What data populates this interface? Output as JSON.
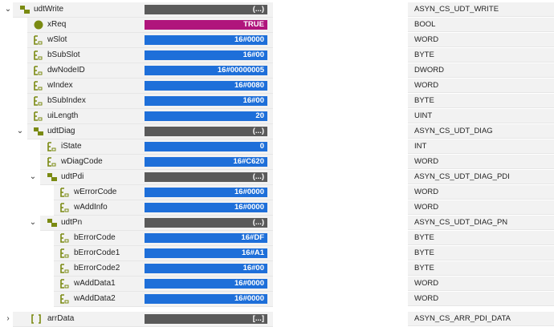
{
  "rows": [
    {
      "name": "udtWrite",
      "value": "(...)",
      "type": "ASYN_CS_UDT_WRITE",
      "icon": "struct-icon",
      "chevron": "expanded",
      "kind": "grey"
    },
    {
      "name": "xReq",
      "value": "TRUE",
      "type": "BOOL",
      "icon": "bool-icon",
      "chevron": "",
      "kind": "bool"
    },
    {
      "name": "wSlot",
      "value": "16#0000",
      "type": "WORD",
      "icon": "var-icon",
      "chevron": "",
      "kind": "blue"
    },
    {
      "name": "bSubSlot",
      "value": "16#00",
      "type": "BYTE",
      "icon": "var-icon",
      "chevron": "",
      "kind": "blue"
    },
    {
      "name": "dwNodeID",
      "value": "16#00000005",
      "type": "DWORD",
      "icon": "var-icon",
      "chevron": "",
      "kind": "blue"
    },
    {
      "name": "wIndex",
      "value": "16#0080",
      "type": "WORD",
      "icon": "var-icon",
      "chevron": "",
      "kind": "blue"
    },
    {
      "name": "bSubIndex",
      "value": "16#00",
      "type": "BYTE",
      "icon": "var-icon",
      "chevron": "",
      "kind": "blue"
    },
    {
      "name": "uiLength",
      "value": "20",
      "type": "UINT",
      "icon": "var-icon",
      "chevron": "",
      "kind": "blue"
    },
    {
      "name": "udtDiag",
      "value": "(...)",
      "type": "ASYN_CS_UDT_DIAG",
      "icon": "struct-icon",
      "chevron": "expanded",
      "kind": "grey"
    },
    {
      "name": "iState",
      "value": "0",
      "type": "INT",
      "icon": "var-icon",
      "chevron": "",
      "kind": "blue"
    },
    {
      "name": "wDiagCode",
      "value": "16#C620",
      "type": "WORD",
      "icon": "var-icon",
      "chevron": "",
      "kind": "blue"
    },
    {
      "name": "udtPdi",
      "value": "(...)",
      "type": "ASYN_CS_UDT_DIAG_PDI",
      "icon": "struct-icon",
      "chevron": "expanded",
      "kind": "grey"
    },
    {
      "name": "wErrorCode",
      "value": "16#0000",
      "type": "WORD",
      "icon": "var-icon",
      "chevron": "",
      "kind": "blue"
    },
    {
      "name": "wAddInfo",
      "value": "16#0000",
      "type": "WORD",
      "icon": "var-icon",
      "chevron": "",
      "kind": "blue"
    },
    {
      "name": "udtPn",
      "value": "(...)",
      "type": "ASYN_CS_UDT_DIAG_PN",
      "icon": "struct-icon",
      "chevron": "expanded",
      "kind": "grey"
    },
    {
      "name": "bErrorCode",
      "value": "16#DF",
      "type": "BYTE",
      "icon": "var-icon",
      "chevron": "",
      "kind": "blue"
    },
    {
      "name": "bErrorCode1",
      "value": "16#A1",
      "type": "BYTE",
      "icon": "var-icon",
      "chevron": "",
      "kind": "blue"
    },
    {
      "name": "bErrorCode2",
      "value": "16#00",
      "type": "BYTE",
      "icon": "var-icon",
      "chevron": "",
      "kind": "blue"
    },
    {
      "name": "wAddData1",
      "value": "16#0000",
      "type": "WORD",
      "icon": "var-icon",
      "chevron": "",
      "kind": "blue"
    },
    {
      "name": "wAddData2",
      "value": "16#0000",
      "type": "WORD",
      "icon": "var-icon",
      "chevron": "",
      "kind": "blue"
    },
    {
      "name": "arrData",
      "value": "[...]",
      "type": "ASYN_CS_ARR_PDI_DATA",
      "icon": "array-icon",
      "chevron": "collapsed",
      "kind": "grey"
    }
  ],
  "colors": {
    "value_blue": "#1e6fd9",
    "value_grey": "#5a5a5a",
    "value_bool": "#b0157c",
    "icon_olive": "#7a8a12",
    "row_bg": "#f2f2f2"
  }
}
